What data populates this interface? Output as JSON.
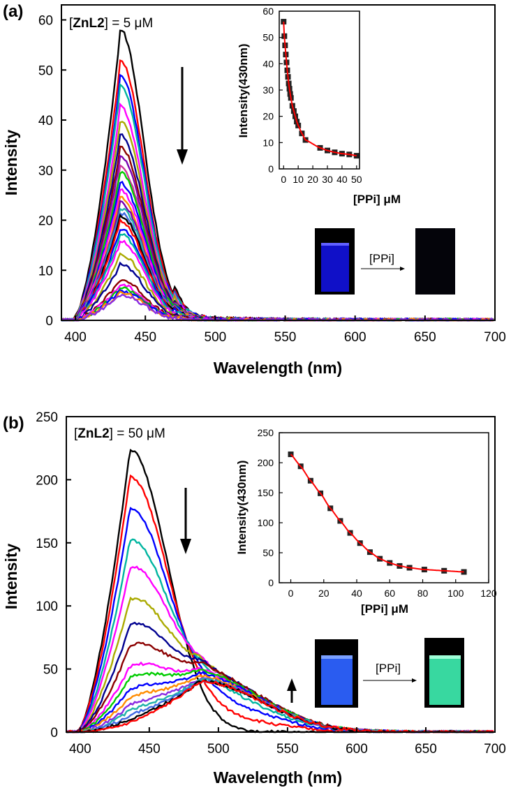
{
  "panels": [
    {
      "label": "(a)",
      "concentration": {
        "species": "ZnL2",
        "value": "5 μM"
      },
      "arrow_direction": "down",
      "photo_arrow_label": "[PPi]",
      "photo_left_color": "#1010c8",
      "photo_right_color": "#04040a",
      "chart_data": {
        "type": "line",
        "xlabel": "Wavelength (nm)",
        "ylabel": "Intensity",
        "xlim": [
          390,
          700
        ],
        "ylim": [
          0,
          63
        ],
        "xticks": [
          400,
          450,
          500,
          550,
          600,
          650,
          700
        ],
        "yticks": [
          0,
          10,
          20,
          30,
          40,
          50,
          60
        ],
        "x": [
          390,
          395,
          400,
          405,
          410,
          415,
          420,
          425,
          430,
          435,
          440,
          445,
          450,
          455,
          460,
          465,
          470,
          475,
          480,
          485,
          490,
          495,
          500,
          505,
          510,
          515,
          520,
          525,
          530,
          540,
          550,
          560,
          570,
          580,
          590,
          600,
          620,
          650,
          700
        ],
        "series": [
          {
            "color": "#000000",
            "peak": 57
          },
          {
            "color": "#ff0000",
            "peak": 51
          },
          {
            "color": "#0000ff",
            "peak": 48
          },
          {
            "color": "#00b5a0",
            "peak": 46
          },
          {
            "color": "#ff00ff",
            "peak": 42
          },
          {
            "color": "#aaaa00",
            "peak": 39
          },
          {
            "color": "#000090",
            "peak": 36.5
          },
          {
            "color": "#8b0000",
            "peak": 34
          },
          {
            "color": "#7b00b0",
            "peak": 32
          },
          {
            "color": "#cc3399",
            "peak": 30
          },
          {
            "color": "#00cc00",
            "peak": 29
          },
          {
            "color": "#0000ff",
            "peak": 27
          },
          {
            "color": "#ff00ff",
            "peak": 25.5
          },
          {
            "color": "#ff8c00",
            "peak": 24
          },
          {
            "color": "#7b00b0",
            "peak": 23
          },
          {
            "color": "#20b2aa",
            "peak": 22
          },
          {
            "color": "#4169e1",
            "peak": 21
          },
          {
            "color": "#000000",
            "peak": 20.5
          },
          {
            "color": "#ff0000",
            "peak": 19.5
          },
          {
            "color": "#0000ff",
            "peak": 18
          },
          {
            "color": "#00b5a0",
            "peak": 17
          },
          {
            "color": "#ff00ff",
            "peak": 15.5
          },
          {
            "color": "#aaaa00",
            "peak": 13
          },
          {
            "color": "#000090",
            "peak": 11
          },
          {
            "color": "#8b0000",
            "peak": 8
          },
          {
            "color": "#ff00ff",
            "peak": 7
          },
          {
            "color": "#00cc00",
            "peak": 6.3
          },
          {
            "color": "#0000ff",
            "peak": 5.8
          },
          {
            "color": "#ff8c00",
            "peak": 5.4
          },
          {
            "color": "#8a2be2",
            "peak": 5
          }
        ]
      },
      "inset_data": {
        "type": "scatter",
        "xlabel": "[PPi] μM",
        "ylabel": "Intensity(430nm)",
        "xlim": [
          -3,
          52
        ],
        "ylim": [
          0,
          60
        ],
        "xticks": [
          0,
          10,
          20,
          30,
          40,
          50
        ],
        "yticks": [
          0,
          10,
          20,
          30,
          40,
          50,
          60
        ],
        "x": [
          0,
          0.5,
          1,
          1.5,
          2,
          2.5,
          3,
          3.5,
          4,
          4.5,
          5,
          6,
          7,
          8,
          9,
          10,
          12.5,
          15,
          25,
          30,
          35,
          40,
          45,
          50
        ],
        "y": [
          56,
          50.5,
          47,
          43.5,
          40.5,
          37.5,
          35,
          32.5,
          30.5,
          28.5,
          27,
          24,
          22,
          20,
          18,
          16.5,
          13.5,
          11,
          8,
          7,
          6.3,
          5.8,
          5.5,
          5
        ],
        "fit_color": "#ff0000"
      }
    },
    {
      "label": "(b)",
      "concentration": {
        "species": "ZnL2",
        "value": "50 μM"
      },
      "arrow_direction": "down",
      "photo_arrow_label": "[PPi]",
      "photo_left_color": "#2a5cf0",
      "photo_right_color": "#38d8a0",
      "chart_data": {
        "type": "line",
        "xlabel": "Wavelength (nm)",
        "ylabel": "Intensity",
        "xlim": [
          390,
          700
        ],
        "ylim": [
          0,
          250
        ],
        "xticks": [
          400,
          450,
          500,
          550,
          600,
          650,
          700
        ],
        "yticks": [
          0,
          50,
          100,
          150,
          200,
          250
        ],
        "x": [
          390,
          395,
          400,
          405,
          410,
          415,
          420,
          425,
          430,
          435,
          440,
          445,
          450,
          455,
          460,
          465,
          470,
          475,
          480,
          485,
          490,
          495,
          500,
          505,
          510,
          515,
          520,
          525,
          530,
          540,
          550,
          560,
          570,
          580,
          590,
          600,
          620,
          650,
          700
        ],
        "series": [
          {
            "color": "#000000",
            "peak": 224
          },
          {
            "color": "#ff0000",
            "peak": 202
          },
          {
            "color": "#0000ff",
            "peak": 177
          },
          {
            "color": "#00b5a0",
            "peak": 152
          },
          {
            "color": "#ff00ff",
            "peak": 131
          },
          {
            "color": "#aaaa00",
            "peak": 106
          },
          {
            "color": "#000090",
            "peak": 86
          },
          {
            "color": "#8b0000",
            "peak": 70
          },
          {
            "color": "#ff00ff",
            "peak": 54
          },
          {
            "color": "#00cc00",
            "peak": 50
          },
          {
            "color": "#0000ff",
            "peak": 47
          },
          {
            "color": "#ff8c00",
            "peak": 45
          },
          {
            "color": "#8a2be2",
            "peak": 43
          },
          {
            "color": "#20b2aa",
            "peak": 42
          },
          {
            "color": "#4169e1",
            "peak": 41
          },
          {
            "color": "#000000",
            "peak": 40.5
          },
          {
            "color": "#ff0000",
            "peak": 40
          }
        ]
      },
      "inset_data": {
        "type": "scatter",
        "xlabel": "[PPi] μM",
        "ylabel": "Intensity(430nm)",
        "xlim": [
          -7,
          120
        ],
        "ylim": [
          0,
          250
        ],
        "xticks": [
          0,
          20,
          40,
          60,
          80,
          100,
          120
        ],
        "yticks": [
          0,
          50,
          100,
          150,
          200,
          250
        ],
        "x": [
          0,
          6,
          12,
          18,
          24,
          30,
          36,
          42,
          48,
          54,
          60,
          66,
          72,
          81,
          93,
          105
        ],
        "y": [
          214,
          194,
          170,
          149,
          124,
          103,
          83,
          66,
          51,
          40,
          33,
          28,
          25,
          22,
          20,
          18
        ],
        "fit_color": "#ff0000"
      }
    }
  ]
}
